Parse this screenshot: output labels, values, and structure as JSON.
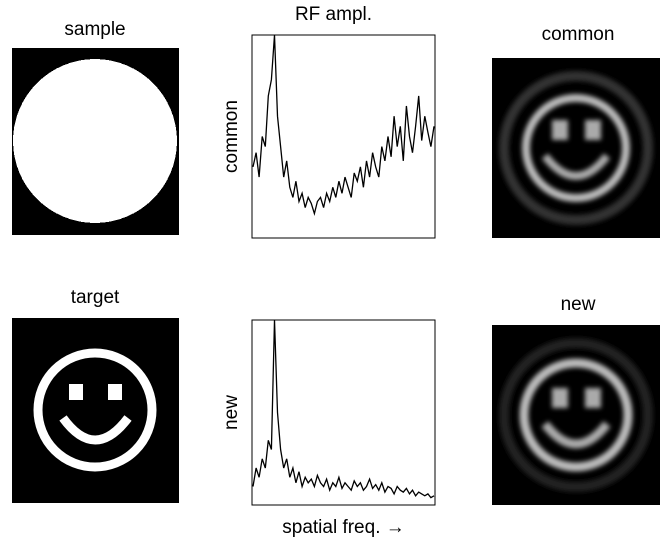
{
  "panels": {
    "sample": "sample",
    "target": "target",
    "common": "common",
    "new": "new"
  },
  "chart_data": [
    {
      "type": "line",
      "title": "RF ampl.",
      "y_label": "common",
      "color": "#000000",
      "ylim": [
        0,
        1
      ],
      "values": [
        0.35,
        0.42,
        0.3,
        0.5,
        0.45,
        0.7,
        0.78,
        1.0,
        0.6,
        0.45,
        0.3,
        0.38,
        0.25,
        0.2,
        0.28,
        0.18,
        0.22,
        0.15,
        0.2,
        0.17,
        0.12,
        0.18,
        0.2,
        0.15,
        0.22,
        0.18,
        0.25,
        0.2,
        0.28,
        0.22,
        0.3,
        0.25,
        0.2,
        0.32,
        0.28,
        0.35,
        0.25,
        0.38,
        0.3,
        0.42,
        0.35,
        0.3,
        0.45,
        0.38,
        0.5,
        0.4,
        0.6,
        0.45,
        0.55,
        0.38,
        0.65,
        0.5,
        0.42,
        0.55,
        0.7,
        0.48,
        0.6,
        0.52,
        0.45,
        0.55
      ]
    },
    {
      "type": "line",
      "y_label": "new",
      "x_label": "spatial freq. →",
      "color": "#000000",
      "ylim": [
        0,
        1
      ],
      "values": [
        0.1,
        0.2,
        0.15,
        0.25,
        0.2,
        0.35,
        0.3,
        1.0,
        0.5,
        0.3,
        0.2,
        0.25,
        0.15,
        0.2,
        0.12,
        0.18,
        0.1,
        0.15,
        0.12,
        0.14,
        0.1,
        0.16,
        0.12,
        0.1,
        0.14,
        0.08,
        0.12,
        0.1,
        0.15,
        0.09,
        0.12,
        0.1,
        0.08,
        0.13,
        0.1,
        0.12,
        0.08,
        0.1,
        0.14,
        0.09,
        0.11,
        0.08,
        0.12,
        0.07,
        0.1,
        0.09,
        0.06,
        0.1,
        0.08,
        0.07,
        0.09,
        0.06,
        0.08,
        0.05,
        0.07,
        0.06,
        0.05,
        0.06,
        0.04,
        0.05
      ]
    }
  ]
}
